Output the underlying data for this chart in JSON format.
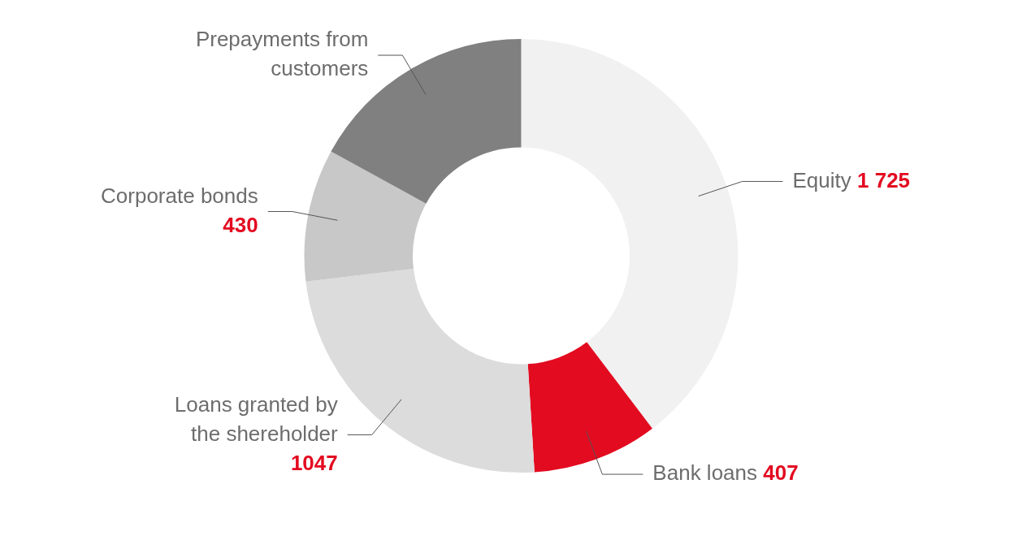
{
  "chart_data": {
    "type": "donut",
    "categories": [
      "Equity",
      "Bank loans",
      "Loans granted by the shereholder",
      "Corporate bonds",
      "Prepayments from customers"
    ],
    "values": [
      1725,
      407,
      1047,
      430,
      740
    ],
    "colors": [
      "#f1f1f1",
      "#e30b20",
      "#dcdcdc",
      "#c8c8c8",
      "#808080"
    ],
    "value_labels": [
      "1 725",
      "407",
      "1047",
      "430",
      null
    ]
  }
}
